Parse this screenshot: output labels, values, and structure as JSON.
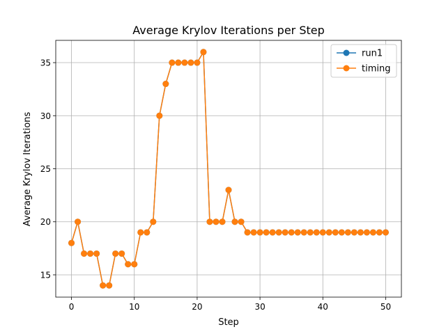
{
  "chart_data": {
    "type": "line",
    "title": "Average Krylov Iterations per Step",
    "xlabel": "Step",
    "ylabel": "Average Krylov Iterations",
    "xlim": [
      -2.5,
      52.5
    ],
    "ylim": [
      12.9,
      37.1
    ],
    "xticks": [
      0,
      10,
      20,
      30,
      40,
      50
    ],
    "yticks": [
      15,
      20,
      25,
      30,
      35
    ],
    "grid": true,
    "legend_position": "top-right",
    "x": [
      0,
      1,
      2,
      3,
      4,
      5,
      6,
      7,
      8,
      9,
      10,
      11,
      12,
      13,
      14,
      15,
      16,
      17,
      18,
      19,
      20,
      21,
      22,
      23,
      24,
      25,
      26,
      27,
      28,
      29,
      30,
      31,
      32,
      33,
      34,
      35,
      36,
      37,
      38,
      39,
      40,
      41,
      42,
      43,
      44,
      45,
      46,
      47,
      48,
      49,
      50
    ],
    "series": [
      {
        "name": "run1",
        "color": "#1f77b4",
        "values": [
          18,
          20,
          17,
          17,
          17,
          14,
          14,
          17,
          17,
          16,
          16,
          19,
          19,
          20,
          30,
          33,
          35,
          35,
          35,
          35,
          35,
          36,
          20,
          20,
          20,
          23,
          20,
          20,
          19,
          19,
          19,
          19,
          19,
          19,
          19,
          19,
          19,
          19,
          19,
          19,
          19,
          19,
          19,
          19,
          19,
          19,
          19,
          19,
          19,
          19,
          19
        ]
      },
      {
        "name": "timing",
        "color": "#ff7f0e",
        "values": [
          18,
          20,
          17,
          17,
          17,
          14,
          14,
          17,
          17,
          16,
          16,
          19,
          19,
          20,
          30,
          33,
          35,
          35,
          35,
          35,
          35,
          36,
          20,
          20,
          20,
          23,
          20,
          20,
          19,
          19,
          19,
          19,
          19,
          19,
          19,
          19,
          19,
          19,
          19,
          19,
          19,
          19,
          19,
          19,
          19,
          19,
          19,
          19,
          19,
          19,
          19
        ]
      }
    ]
  }
}
